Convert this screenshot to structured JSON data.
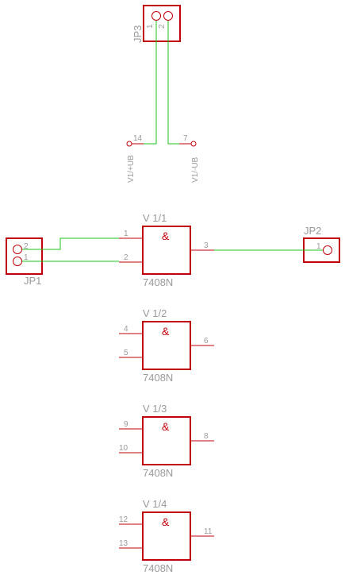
{
  "connectors": {
    "jp3": {
      "name": "JP3",
      "pins": [
        "1",
        "2"
      ]
    },
    "jp1": {
      "name": "JP1",
      "pins": [
        "2",
        "1"
      ]
    },
    "jp2": {
      "name": "JP2",
      "pins": [
        "1"
      ]
    }
  },
  "power": {
    "vcc": {
      "label": "V1/+UB",
      "pin": "14"
    },
    "gnd": {
      "label": "V1/-UB",
      "pin": "7"
    }
  },
  "gates": [
    {
      "name": "V 1/1",
      "value": "7408N",
      "symbol": "&",
      "in1": "1",
      "in2": "2",
      "out": "3"
    },
    {
      "name": "V 1/2",
      "value": "7408N",
      "symbol": "&",
      "in1": "4",
      "in2": "5",
      "out": "6"
    },
    {
      "name": "V 1/3",
      "value": "7408N",
      "symbol": "&",
      "in1": "9",
      "in2": "10",
      "out": "8"
    },
    {
      "name": "V 1/4",
      "value": "7408N",
      "symbol": "&",
      "in1": "12",
      "in2": "13",
      "out": "11"
    }
  ]
}
